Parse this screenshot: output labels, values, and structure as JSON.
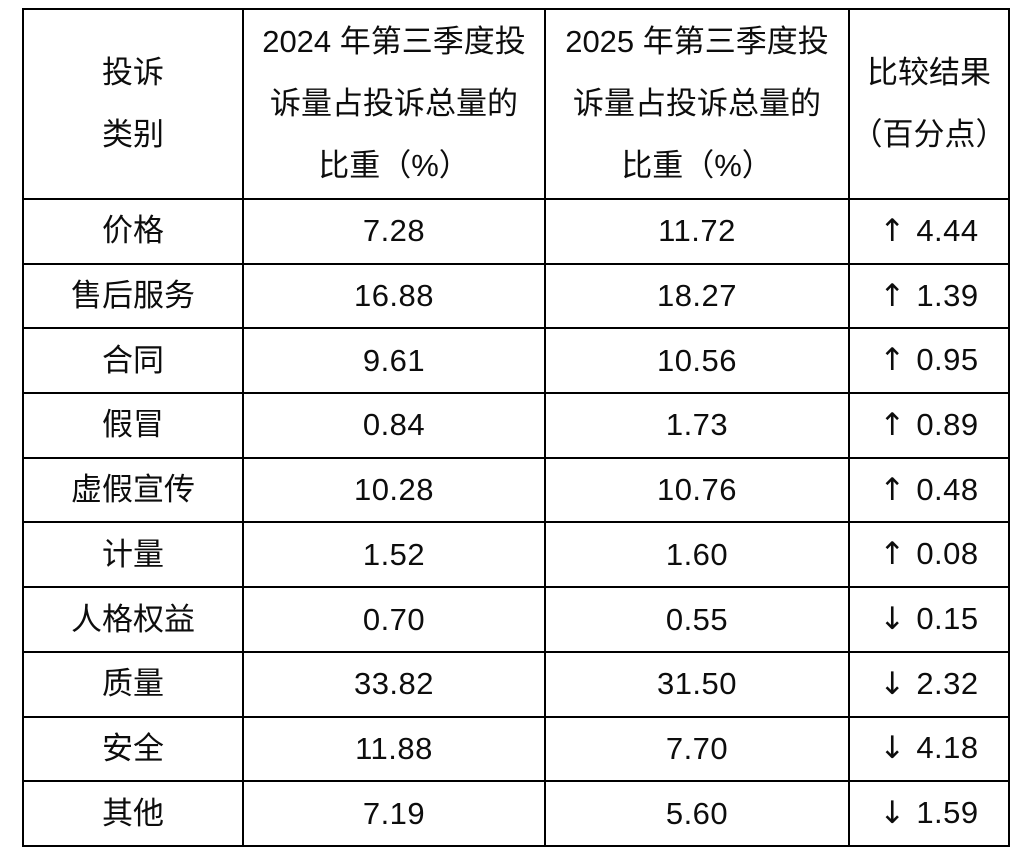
{
  "chart_data": {
    "type": "table",
    "title": "",
    "columns": [
      "投诉\n类别",
      "2024 年第三季度投\n诉量占投诉总量的\n比重（%）",
      "2025 年第三季度投\n诉量占投诉总量的\n比重（%）",
      "比较结果\n（百分点）"
    ],
    "rows": [
      {
        "category": "价格",
        "v2024": "7.28",
        "v2025": "11.72",
        "arrow": "↑",
        "change": "4.44",
        "direction": "up"
      },
      {
        "category": "售后服务",
        "v2024": "16.88",
        "v2025": "18.27",
        "arrow": "↑",
        "change": "1.39",
        "direction": "up"
      },
      {
        "category": "合同",
        "v2024": "9.61",
        "v2025": "10.56",
        "arrow": "↑",
        "change": "0.95",
        "direction": "up"
      },
      {
        "category": "假冒",
        "v2024": "0.84",
        "v2025": "1.73",
        "arrow": "↑",
        "change": "0.89",
        "direction": "up"
      },
      {
        "category": "虚假宣传",
        "v2024": "10.28",
        "v2025": "10.76",
        "arrow": "↑",
        "change": "0.48",
        "direction": "up"
      },
      {
        "category": "计量",
        "v2024": "1.52",
        "v2025": "1.60",
        "arrow": "↑",
        "change": "0.08",
        "direction": "up"
      },
      {
        "category": "人格权益",
        "v2024": "0.70",
        "v2025": "0.55",
        "arrow": "↓",
        "change": "0.15",
        "direction": "down"
      },
      {
        "category": "质量",
        "v2024": "33.82",
        "v2025": "31.50",
        "arrow": "↓",
        "change": "2.32",
        "direction": "down"
      },
      {
        "category": "安全",
        "v2024": "11.88",
        "v2025": "7.70",
        "arrow": "↓",
        "change": "4.18",
        "direction": "down"
      },
      {
        "category": "其他",
        "v2024": "7.19",
        "v2025": "5.60",
        "arrow": "↓",
        "change": "1.59",
        "direction": "down"
      }
    ],
    "colors": {
      "border": "#000000",
      "text": "#0d0d0d",
      "background": "#ffffff"
    }
  }
}
